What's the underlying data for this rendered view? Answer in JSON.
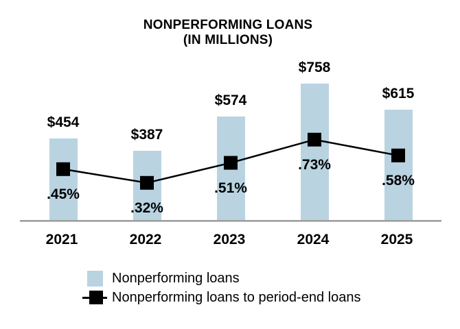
{
  "title": {
    "line1": "NONPERFORMING LOANS",
    "line2": "(IN MILLIONS)"
  },
  "chart_data": {
    "type": "bar",
    "title": "NONPERFORMING LOANS (IN MILLIONS)",
    "categories": [
      "2021",
      "2022",
      "2023",
      "2024",
      "2025"
    ],
    "series": [
      {
        "name": "Nonperforming loans",
        "type": "bar",
        "values": [
          454,
          387,
          574,
          758,
          615
        ],
        "labels": [
          "$454",
          "$387",
          "$574",
          "$758",
          "$615"
        ],
        "color": "#b9d3e1"
      },
      {
        "name": "Nonperforming loans to period-end loans",
        "type": "line",
        "values": [
          0.45,
          0.32,
          0.51,
          0.73,
          0.58
        ],
        "labels": [
          ".45%",
          ".32%",
          ".51%",
          ".73%",
          ".58%"
        ],
        "color": "#000000",
        "marker": "square"
      }
    ],
    "value_axis_visible": false,
    "grid": false,
    "legend_position": "bottom-left",
    "baseline_color": "#9d9d9d"
  },
  "legend": {
    "items": [
      {
        "label": "Nonperforming loans",
        "swatch": "bar"
      },
      {
        "label": "Nonperforming loans to period-end loans",
        "swatch": "line-marker"
      }
    ]
  }
}
